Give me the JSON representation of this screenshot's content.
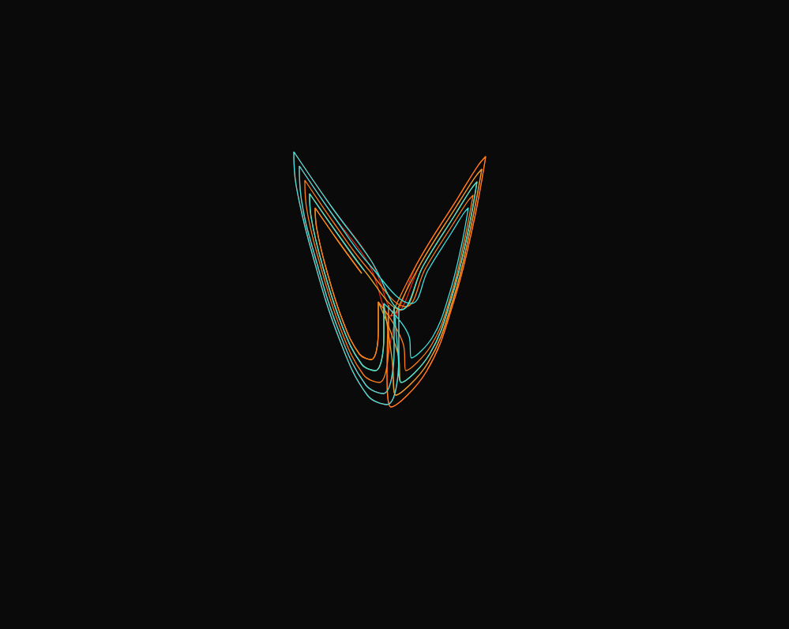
{
  "chart_data": {
    "type": "line",
    "xlim": [
      0,
      999
    ],
    "ylim": [
      0,
      796
    ],
    "tick_labels": false,
    "grid": false,
    "series": [
      {
        "color": "#d8261a",
        "x": [
          499,
          499,
          485,
          463,
          431,
          399,
          381,
          379,
          422,
          467,
          495,
          530,
          580,
          605,
          615,
          600,
          575,
          540,
          495,
          490,
          505,
          505,
          490,
          465,
          430,
          395,
          375,
          372,
          420,
          470,
          501,
          533,
          578,
          601,
          610,
          596,
          574,
          542,
          501,
          497
        ],
        "values": [
          388,
          442,
          498,
          487,
          424,
          325,
          248,
          210,
          273,
          334,
          400,
          330,
          250,
          210,
          198,
          280,
          380,
          470,
          515,
          470,
          390,
          450,
          512,
          500,
          430,
          320,
          235,
          192,
          262,
          330,
          396,
          333,
          261,
          225,
          214,
          288,
          378,
          459,
          500,
          459
        ]
      },
      {
        "color": "#e0a82a",
        "x": [
          501,
          533,
          578,
          601,
          610,
          596,
          574,
          542,
          501,
          497,
          486,
          486,
          475,
          458,
          433,
          408,
          394,
          392,
          426,
          461,
          508,
          536,
          576,
          596,
          604,
          592,
          572,
          544,
          508,
          504,
          479,
          479,
          470,
          455,
          434,
          413,
          401,
          399,
          428,
          458
        ],
        "values": [
          396,
          333,
          261,
          225,
          214,
          288,
          378,
          459,
          500,
          459,
          384,
          426,
          469,
          461,
          412,
          335,
          275,
          245,
          294,
          342,
          392,
          336,
          272,
          240,
          230,
          296,
          376,
          448,
          484,
          448,
          382,
          418,
          455,
          448,
          406,
          340,
          289,
          263,
          305,
          346
        ]
      },
      {
        "color": "#ff7f1a",
        "x": [
          495,
          530,
          580,
          605,
          615,
          600,
          575,
          540,
          495,
          490,
          492,
          492,
          480,
          460,
          432,
          404,
          388,
          386,
          424,
          464,
          514,
          539,
          574,
          592,
          599,
          588,
          571,
          546,
          514,
          511,
          479,
          479,
          470,
          455,
          434,
          413,
          401,
          399,
          428,
          458
        ],
        "values": [
          400,
          330,
          250,
          210,
          198,
          280,
          380,
          470,
          515,
          470,
          386,
          434,
          484,
          474,
          418,
          330,
          262,
          228,
          284,
          338,
          388,
          339,
          283,
          255,
          247,
          304,
          374,
          437,
          469,
          437,
          382,
          418,
          455,
          448,
          406,
          340,
          289,
          263,
          305,
          346
        ]
      },
      {
        "color": "#3fe0dc",
        "x": [
          505,
          505,
          490,
          465,
          430,
          395,
          375,
          372,
          420,
          470,
          508,
          536,
          576,
          596,
          604,
          592,
          572,
          544,
          508,
          504,
          499,
          499,
          485,
          463,
          431,
          399,
          381,
          379,
          422,
          467,
          521,
          542,
          572,
          587,
          593,
          584,
          569,
          548,
          521,
          518,
          486,
          486,
          475,
          458,
          433,
          408,
          394,
          392,
          426,
          461
        ],
        "values": [
          390,
          450,
          512,
          500,
          430,
          320,
          235,
          192,
          262,
          330,
          392,
          336,
          272,
          240,
          230,
          296,
          376,
          448,
          484,
          448,
          388,
          442,
          498,
          487,
          424,
          325,
          248,
          210,
          273,
          334,
          384,
          342,
          294,
          270,
          263,
          312,
          372,
          426,
          453,
          426,
          384,
          426,
          469,
          461,
          412,
          335,
          275,
          245,
          294,
          342
        ]
      }
    ]
  }
}
